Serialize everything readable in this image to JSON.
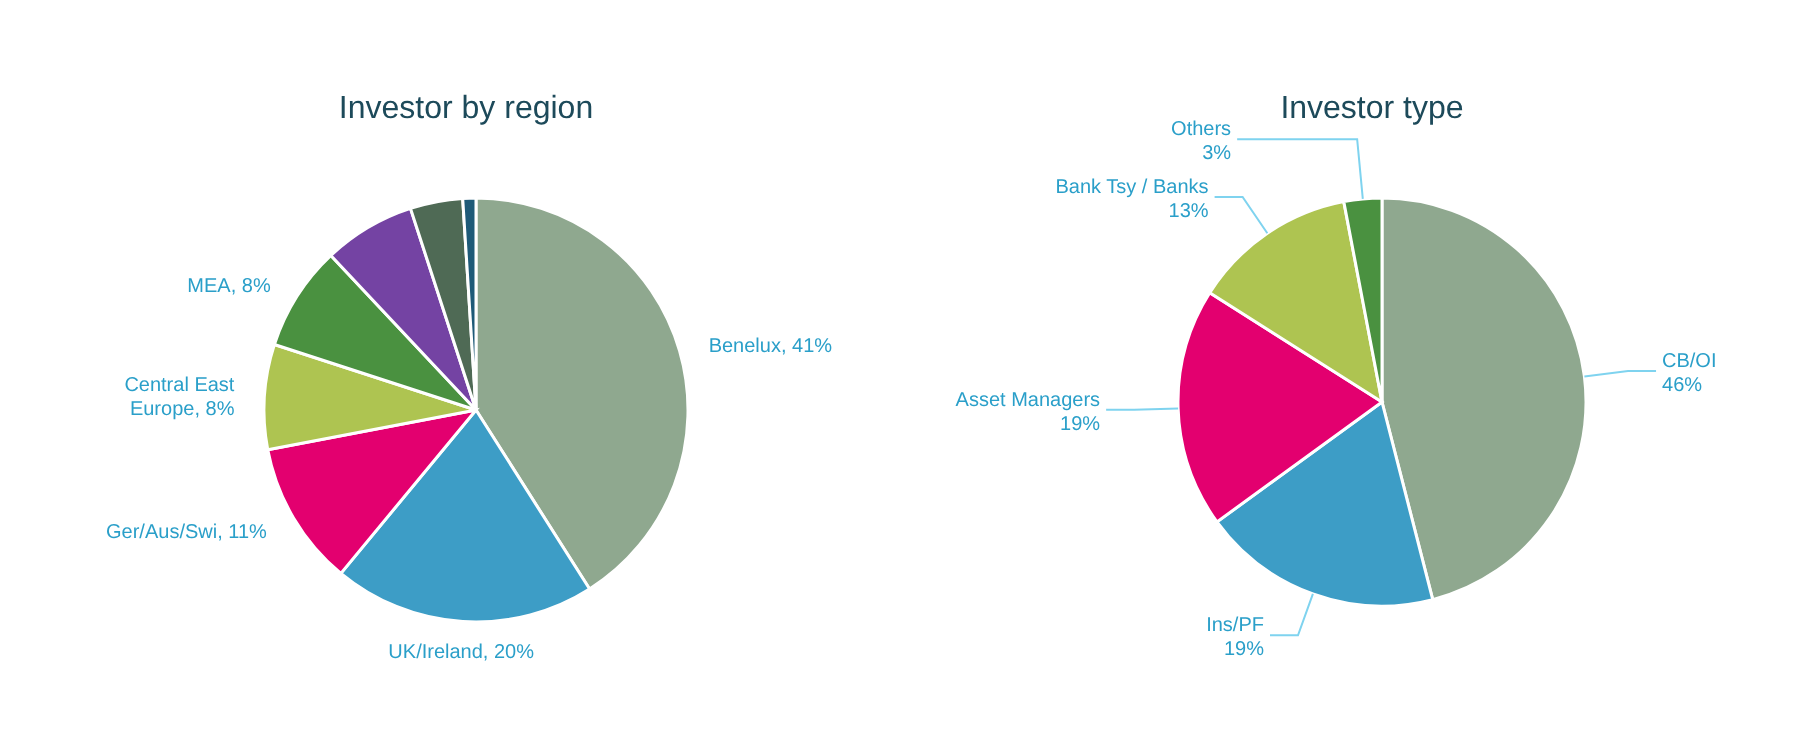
{
  "chart_data": [
    {
      "type": "pie",
      "title": "Investor by region",
      "categories": [
        "Benelux",
        "UK/Ireland",
        "Ger/Aus/Swi",
        "Central East Europe",
        "MEA",
        null,
        null,
        null
      ],
      "values": [
        41,
        20,
        11,
        8,
        8,
        7,
        4,
        1
      ],
      "value_labels": [
        "41%",
        "20%",
        "11%",
        "8%",
        "8%",
        null,
        null,
        null
      ],
      "colors": [
        "#8fa88f",
        "#3d9dc6",
        "#e3006f",
        "#aec451",
        "#4a9140",
        "#7443a3",
        "#4f6a55",
        "#1e5a78"
      ],
      "legend": false
    },
    {
      "type": "pie",
      "title": "Investor type",
      "categories": [
        "CB/OI",
        "Ins/PF",
        "Asset Managers",
        "Bank Tsy / Banks",
        "Others"
      ],
      "values": [
        46,
        19,
        19,
        13,
        3
      ],
      "value_labels": [
        "46%",
        "19%",
        "19%",
        "13%",
        "3%"
      ],
      "colors": [
        "#8fa88f",
        "#3d9dc6",
        "#e3006f",
        "#aec451",
        "#4a9140"
      ],
      "legend": false
    }
  ]
}
